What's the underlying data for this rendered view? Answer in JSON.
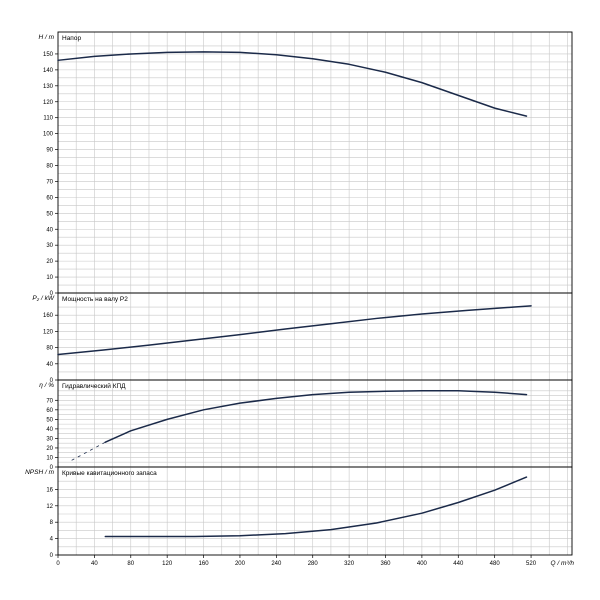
{
  "chart_data": {
    "type": "line",
    "x_axis": {
      "label": "Q / m³/h",
      "ticks": [
        0,
        40,
        80,
        120,
        160,
        200,
        240,
        280,
        320,
        360,
        400,
        440,
        480,
        520
      ],
      "range": [
        0,
        565
      ]
    },
    "panels": [
      {
        "id": "head",
        "title": "Напор",
        "ylabel": "H / m",
        "ylim": [
          0,
          160
        ],
        "yticks": [
          0,
          10,
          20,
          30,
          40,
          50,
          60,
          70,
          80,
          90,
          100,
          110,
          120,
          130,
          140,
          150
        ],
        "series": [
          {
            "x": [
              0,
              40,
              80,
              120,
              160,
              200,
              240,
              280,
              320,
              360,
              400,
              440,
              480,
              515
            ],
            "y": [
              146,
              148.5,
              150,
              151,
              151.3,
              151,
              149.5,
              147,
              143.5,
              138.5,
              132,
              124,
              116,
              111
            ]
          }
        ]
      },
      {
        "id": "power",
        "title": "Мощность на валу P2",
        "ylabel": "P₂ / kW",
        "ylim": [
          0,
          200
        ],
        "yticks": [
          0,
          40,
          80,
          120,
          160
        ],
        "series": [
          {
            "x": [
              0,
              50,
              100,
              150,
              200,
              250,
              300,
              350,
              400,
              450,
              500,
              520
            ],
            "y": [
              63,
              74,
              86,
              99,
              112,
              126,
              139,
              152,
              163,
              172,
              180,
              183
            ]
          }
        ]
      },
      {
        "id": "efficiency",
        "title": "Гидравлический КПД",
        "ylabel": "η / %",
        "ylim": [
          0,
          85
        ],
        "yticks": [
          0,
          10,
          20,
          30,
          40,
          50,
          60,
          70
        ],
        "series": [
          {
            "x": [
              52,
              80,
              120,
              160,
              200,
              240,
              280,
              320,
              360,
              400,
              440,
              480,
              515
            ],
            "y": [
              26,
              38,
              50,
              60,
              67,
              72,
              76,
              78.5,
              79.5,
              80,
              80,
              78.5,
              76
            ]
          }
        ],
        "extrapolated": [
          {
            "x": [
              15,
              52
            ],
            "y": [
              7,
              26
            ]
          }
        ]
      },
      {
        "id": "npsh",
        "title": "Кривые кавитационного запаса",
        "ylabel": "NPSH / m",
        "ylim": [
          0,
          20
        ],
        "yticks": [
          0,
          4,
          8,
          12,
          16
        ],
        "series": [
          {
            "x": [
              52,
              100,
              150,
              200,
              250,
              300,
              350,
              400,
              440,
              480,
              515
            ],
            "y": [
              4.5,
              4.5,
              4.5,
              4.7,
              5.2,
              6.2,
              7.8,
              10.2,
              12.8,
              15.8,
              19
            ]
          }
        ]
      }
    ],
    "grid": true
  }
}
